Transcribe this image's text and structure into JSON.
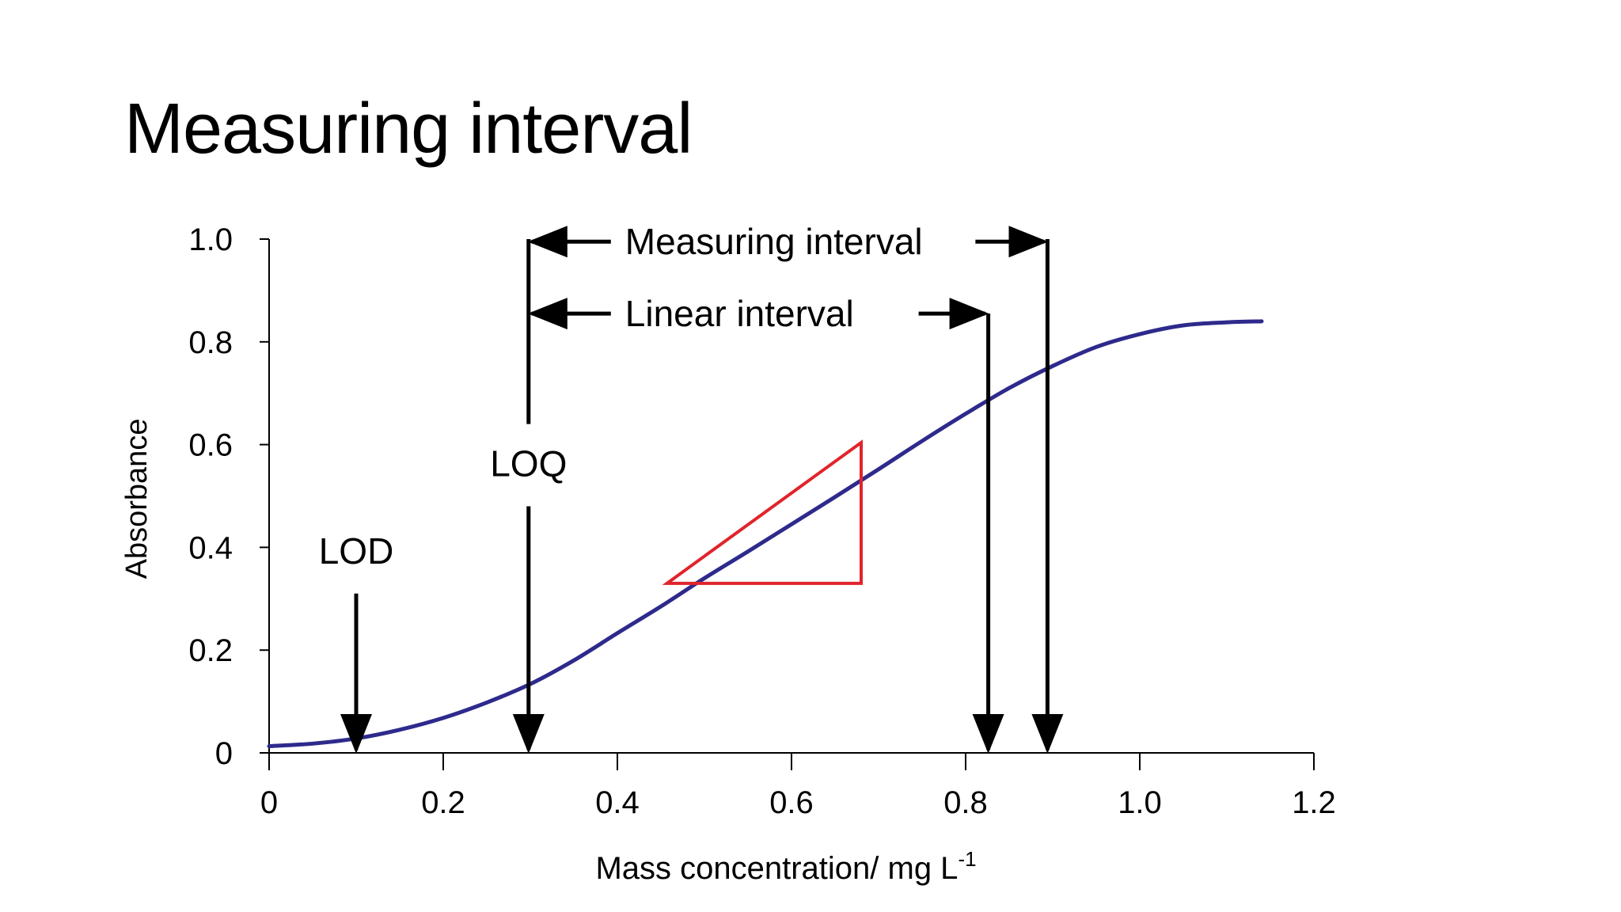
{
  "slide": {
    "title": "Measuring interval"
  },
  "chart_data": {
    "type": "line",
    "xlabel": "Mass concentration/ mg L",
    "xlabel_superscript": "-1",
    "ylabel": "Absorbance",
    "xlim": [
      0,
      1.2
    ],
    "ylim": [
      0,
      1.0
    ],
    "x_ticks": [
      0,
      0.2,
      0.4,
      0.6,
      0.8,
      1.0,
      1.2
    ],
    "x_tick_labels": [
      "0",
      "0.2",
      "0.4",
      "0.6",
      "0.8",
      "1.0",
      "1.2"
    ],
    "y_ticks": [
      0,
      0.2,
      0.4,
      0.6,
      0.8,
      1.0
    ],
    "y_tick_labels": [
      "0",
      "0.2",
      "0.4",
      "0.6",
      "0.8",
      "1.0"
    ],
    "grid": false,
    "series": [
      {
        "color": "#2e2a8c",
        "points": [
          [
            0.0,
            0.013
          ],
          [
            0.05,
            0.018
          ],
          [
            0.1,
            0.028
          ],
          [
            0.15,
            0.045
          ],
          [
            0.2,
            0.068
          ],
          [
            0.25,
            0.098
          ],
          [
            0.3,
            0.134
          ],
          [
            0.35,
            0.18
          ],
          [
            0.4,
            0.233
          ],
          [
            0.45,
            0.285
          ],
          [
            0.5,
            0.34
          ],
          [
            0.55,
            0.392
          ],
          [
            0.6,
            0.445
          ],
          [
            0.65,
            0.498
          ],
          [
            0.7,
            0.552
          ],
          [
            0.75,
            0.607
          ],
          [
            0.8,
            0.66
          ],
          [
            0.85,
            0.71
          ],
          [
            0.9,
            0.753
          ],
          [
            0.95,
            0.79
          ],
          [
            1.0,
            0.815
          ],
          [
            1.05,
            0.832
          ],
          [
            1.1,
            0.838
          ],
          [
            1.14,
            0.84
          ]
        ]
      }
    ],
    "slope_triangle": {
      "color": "#e0242b",
      "x1": 0.457,
      "y1": 0.33,
      "x2": 0.68,
      "y2": 0.604
    },
    "markers": [
      {
        "label": "LOD",
        "x": 0.1,
        "y_from": 0.31,
        "y_to": 0.0
      },
      {
        "label": "LOQ",
        "x": 0.298,
        "y_from": 0.48,
        "y_to": 0.0
      }
    ],
    "interval_lines": [
      {
        "x": 0.298,
        "y_from": 0.64,
        "y_to": 1.0
      },
      {
        "x": 0.826,
        "y_from": 0.855,
        "y_to": 0.0
      },
      {
        "x": 0.894,
        "y_from": 1.0,
        "y_to": 0.0
      }
    ],
    "intervals": [
      {
        "label": "Measuring interval",
        "x_start": 0.298,
        "x_end": 0.894,
        "y": 0.995
      },
      {
        "label": "Linear interval",
        "x_start": 0.298,
        "x_end": 0.826,
        "y": 0.855
      }
    ]
  }
}
